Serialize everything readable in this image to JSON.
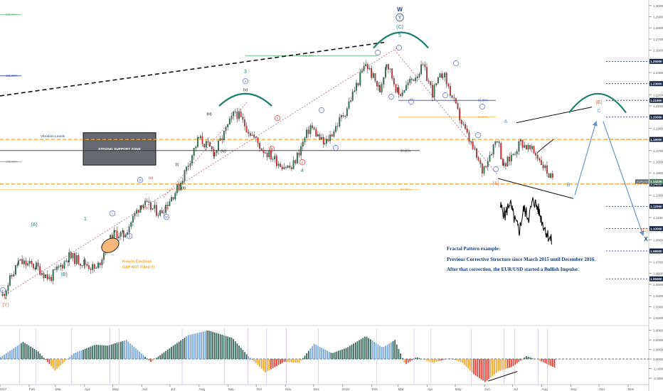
{
  "chart_data": {
    "type": "candlestick",
    "instrument_label": "EURUSD",
    "current_price": "1.14226",
    "x_axis": {
      "ticks": [
        "2017",
        "Feb",
        "Mar",
        "Apr",
        "May",
        "Jun",
        "Jul",
        "Aug",
        "Sep",
        "Oct",
        "Nov",
        "Dec",
        "2018",
        "Feb",
        "Mar",
        "Apr",
        "May",
        "Jun",
        "Jul",
        "Aug",
        "Sep",
        "Oct",
        "Nov"
      ]
    },
    "y_axis": {
      "range": [
        1.015,
        1.305
      ],
      "ticks": [
        "1.30000",
        "1.29000",
        "1.28000",
        "1.27000",
        "1.26000",
        "1.25000",
        "1.24000",
        "1.23000",
        "1.22000",
        "1.21000",
        "1.20000",
        "1.19000",
        "1.18000",
        "1.17000",
        "1.16000",
        "1.15000",
        "1.14000",
        "1.13000",
        "1.12000",
        "1.11000",
        "1.10000",
        "1.09000",
        "1.08000",
        "1.07000",
        "1.06000",
        "1.05000",
        "1.04000",
        "1.03000",
        "1.02000"
      ],
      "marked_levels": [
        "1.25000",
        "1.23000",
        "1.21500",
        "1.20000",
        "1.18000",
        "1.14000",
        "1.12000",
        "1.10000",
        "1.08000",
        "1.05500"
      ]
    },
    "oscillator_axis": {
      "range": [
        -2.6,
        3.2
      ],
      "ticks": [
        "3.0000",
        "2.0000",
        "1.0000",
        "0.0000",
        "-1.0000",
        "-2.0000"
      ]
    },
    "series": [
      {
        "kind": "price-close",
        "points": [
          [
            "2017-01-03",
            1.04
          ],
          [
            "2017-01-20",
            1.07
          ],
          [
            "2017-02-08",
            1.066
          ],
          [
            "2017-02-22",
            1.055
          ],
          [
            "2017-03-15",
            1.075
          ],
          [
            "2017-04-01",
            1.069
          ],
          [
            "2017-04-13",
            1.063
          ],
          [
            "2017-04-24",
            1.085
          ],
          [
            "2017-05-03",
            1.096
          ],
          [
            "2017-05-12",
            1.094
          ],
          [
            "2017-05-31",
            1.123
          ],
          [
            "2017-06-20",
            1.114
          ],
          [
            "2017-07-10",
            1.138
          ],
          [
            "2017-07-31",
            1.181
          ],
          [
            "2017-08-17",
            1.168
          ],
          [
            "2017-09-08",
            1.205
          ],
          [
            "2017-10-06",
            1.172
          ],
          [
            "2017-10-26",
            1.158
          ],
          [
            "2017-11-07",
            1.154
          ],
          [
            "2017-11-27",
            1.192
          ],
          [
            "2017-12-12",
            1.175
          ],
          [
            "2018-01-03",
            1.205
          ],
          [
            "2018-01-25",
            1.248
          ],
          [
            "2018-02-09",
            1.224
          ],
          [
            "2018-02-16",
            1.25
          ],
          [
            "2018-03-01",
            1.22
          ],
          [
            "2018-03-27",
            1.245
          ],
          [
            "2018-04-06",
            1.222
          ],
          [
            "2018-04-17",
            1.24
          ],
          [
            "2018-05-07",
            1.195
          ],
          [
            "2018-05-29",
            1.152
          ],
          [
            "2018-06-14",
            1.182
          ],
          [
            "2018-06-21",
            1.155
          ],
          [
            "2018-07-09",
            1.178
          ],
          [
            "2018-07-27",
            1.165
          ],
          [
            "2018-08-14",
            1.14
          ]
        ]
      },
      {
        "kind": "fractal-pattern",
        "points": [
          [
            "2018-06-18",
            1.12
          ],
          [
            "2018-06-23",
            1.112
          ],
          [
            "2018-06-28",
            1.124
          ],
          [
            "2018-07-03",
            1.108
          ],
          [
            "2018-07-08",
            1.098
          ],
          [
            "2018-07-13",
            1.118
          ],
          [
            "2018-07-18",
            1.11
          ],
          [
            "2018-07-23",
            1.126
          ],
          [
            "2018-07-28",
            1.118
          ],
          [
            "2018-08-02",
            1.105
          ],
          [
            "2018-08-07",
            1.095
          ],
          [
            "2018-08-12",
            1.088
          ]
        ]
      },
      {
        "kind": "oscillator",
        "points": [
          [
            "2017-01-01",
            0.2
          ],
          [
            "2017-01-25",
            1.8
          ],
          [
            "2017-02-10",
            0.8
          ],
          [
            "2017-02-28",
            -1.2
          ],
          [
            "2017-03-20",
            0.6
          ],
          [
            "2017-04-12",
            1.5
          ],
          [
            "2017-04-25",
            1.4
          ],
          [
            "2017-05-15",
            2.0
          ],
          [
            "2017-06-10",
            -0.3
          ],
          [
            "2017-07-01",
            1.2
          ],
          [
            "2017-07-20",
            2.5
          ],
          [
            "2017-08-10",
            3.0
          ],
          [
            "2017-09-05",
            2.2
          ],
          [
            "2017-09-20",
            0.5
          ],
          [
            "2017-10-10",
            -1.4
          ],
          [
            "2017-10-30",
            -0.3
          ],
          [
            "2017-11-15",
            -0.4
          ],
          [
            "2017-12-01",
            1.6
          ],
          [
            "2017-12-20",
            0.6
          ],
          [
            "2018-01-05",
            1.2
          ],
          [
            "2018-01-25",
            2.4
          ],
          [
            "2018-02-12",
            1.2
          ],
          [
            "2018-02-25",
            2.0
          ],
          [
            "2018-03-08",
            -0.6
          ],
          [
            "2018-03-20",
            0.2
          ],
          [
            "2018-04-06",
            -0.4
          ],
          [
            "2018-04-25",
            0.1
          ],
          [
            "2018-05-08",
            -0.4
          ],
          [
            "2018-05-20",
            -1.6
          ],
          [
            "2018-06-01",
            -2.4
          ],
          [
            "2018-06-15",
            -1.3
          ],
          [
            "2018-06-30",
            -0.8
          ],
          [
            "2018-07-15",
            0.3
          ],
          [
            "2018-07-30",
            -0.2
          ],
          [
            "2018-08-14",
            -0.9
          ]
        ]
      }
    ],
    "levels": [
      {
        "label": "Vibration Levels",
        "values": [
          1.18,
          1.14
        ]
      },
      {
        "label": "161.80%",
        "value": 1.255
      },
      {
        "label": "61.80%",
        "value": 1.215
      },
      {
        "label": "50.00%",
        "value": 1.2
      },
      {
        "label": "38.20%",
        "value": 1.17
      },
      {
        "label": "50.00%",
        "value": 1.135
      },
      {
        "label": "200.00%",
        "value": 1.292
      },
      {
        "label": "181.80%",
        "value": 1.237
      },
      {
        "label": "100.00%",
        "value": 1.16
      }
    ],
    "annotations": {
      "support_zone": "STRONG SUPPORT ZONE",
      "election_note_line1": "French Elections",
      "election_note_line2": "GAP NOT Filled !!!",
      "wave_labels": [
        "W",
        "Y",
        "(C)",
        "5",
        "3",
        "(v)",
        "(iii)",
        "(iv)",
        "(ii)",
        "(i)",
        "1",
        "2",
        "4",
        "(A)",
        "(B)",
        "X",
        "(Y)",
        "Y",
        "(B)",
        "C",
        "(A)",
        "A",
        "B",
        "(C)",
        "(w)",
        "(x)",
        "(y)",
        "iv",
        "ii",
        "i",
        "iii",
        "v",
        "x",
        "w",
        "y"
      ],
      "notes": [
        "Fractal Pattern example:",
        "Previous Corrective Structure since March 2015 until December 2016.",
        "After that correction, the EUR/USD started a Bullish Impulse."
      ]
    }
  }
}
